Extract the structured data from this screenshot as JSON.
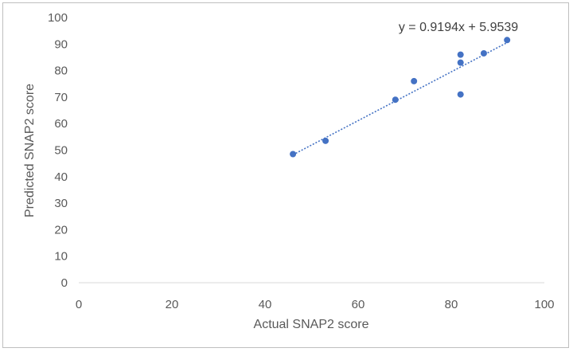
{
  "chart_data": {
    "type": "scatter",
    "xlabel": "Actual SNAP2 score",
    "ylabel": "Predicted SNAP2 score",
    "xlim": [
      0,
      100
    ],
    "ylim": [
      0,
      100
    ],
    "xticks": [
      0,
      20,
      40,
      60,
      80,
      100
    ],
    "yticks": [
      0,
      10,
      20,
      30,
      40,
      50,
      60,
      70,
      80,
      90,
      100
    ],
    "grid": false,
    "legend": "none",
    "series": [
      {
        "color": "#4472c4",
        "points": [
          {
            "x": 46,
            "y": 48.5
          },
          {
            "x": 53,
            "y": 53.5
          },
          {
            "x": 68,
            "y": 69
          },
          {
            "x": 72,
            "y": 76
          },
          {
            "x": 82,
            "y": 71
          },
          {
            "x": 82,
            "y": 83
          },
          {
            "x": 82,
            "y": 86
          },
          {
            "x": 87,
            "y": 86.5
          },
          {
            "x": 92,
            "y": 91.5
          }
        ]
      }
    ],
    "trendline": {
      "type": "linear",
      "slope": 0.9194,
      "intercept": 5.9539,
      "x_range": [
        46,
        92
      ],
      "equation_label": "y = 0.9194x + 5.9539",
      "color": "#4472c4",
      "style": "dotted"
    }
  }
}
